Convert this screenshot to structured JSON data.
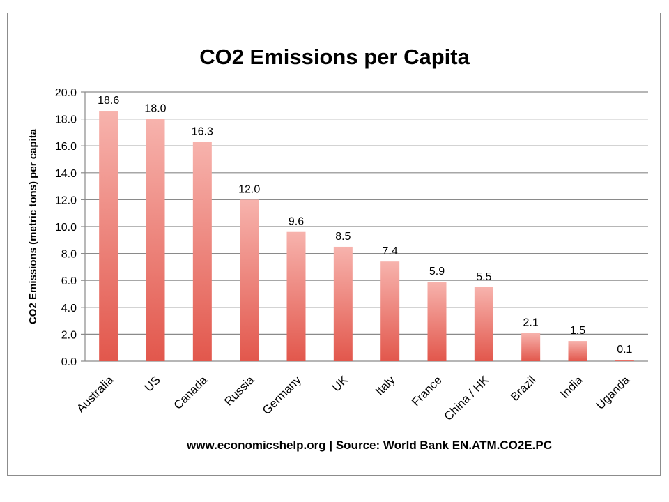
{
  "chart_data": {
    "type": "bar",
    "title": "CO2 Emissions per Capita",
    "ylabel": "CO2 Emissions (metric tons) per capita",
    "xlabel": "",
    "source": "www.economicshelp.org | Source: World Bank EN.ATM.CO2E.PC",
    "categories": [
      "Australia",
      "US",
      "Canada",
      "Russia",
      "Germany",
      "UK",
      "Italy",
      "France",
      "China / HK",
      "Brazil",
      "India",
      "Uganda"
    ],
    "values": [
      18.6,
      18.0,
      16.3,
      12.0,
      9.6,
      8.5,
      7.4,
      5.9,
      5.5,
      2.1,
      1.5,
      0.1
    ],
    "data_labels": [
      "18.6",
      "18.0",
      "16.3",
      "12.0",
      "9.6",
      "8.5",
      "7.4",
      "5.9",
      "5.5",
      "2.1",
      "1.5",
      "0.1"
    ],
    "ylim": [
      0,
      20
    ],
    "yticks": [
      "0.0",
      "2.0",
      "4.0",
      "6.0",
      "8.0",
      "10.0",
      "12.0",
      "14.0",
      "16.0",
      "18.0",
      "20.0"
    ],
    "grid": true,
    "bar_color_top": "#f7b3ad",
    "bar_color_bottom": "#e2574c"
  }
}
